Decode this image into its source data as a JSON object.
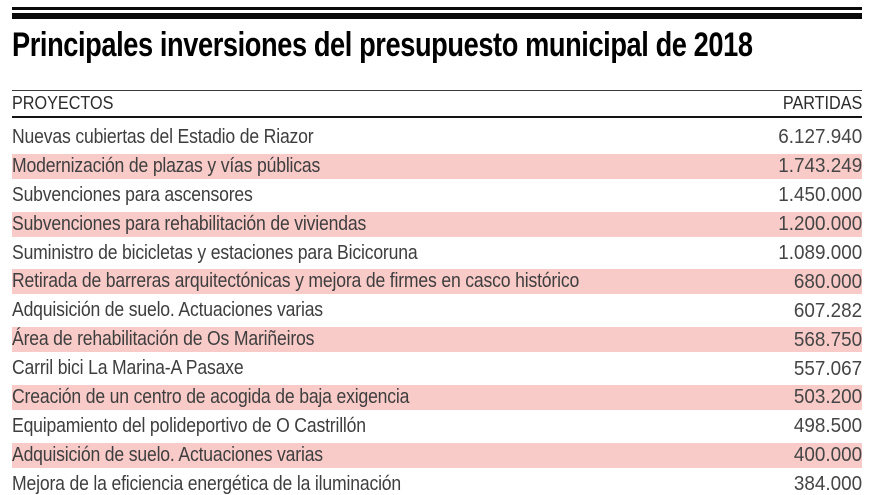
{
  "title": "Principales inversiones del presupuesto municipal de 2018",
  "table": {
    "columns": [
      "PROYECTOS",
      "PARTIDAS"
    ],
    "rows": [
      {
        "project": "Nuevas cubiertas del Estadio de Riazor",
        "amount": "6.127.940",
        "highlighted": false
      },
      {
        "project": "Modernización de plazas y vías públicas",
        "amount": "1.743.249",
        "highlighted": true
      },
      {
        "project": "Subvenciones para ascensores",
        "amount": "1.450.000",
        "highlighted": false
      },
      {
        "project": "Subvenciones para rehabilitación de viviendas",
        "amount": "1.200.000",
        "highlighted": true
      },
      {
        "project": "Suministro de bicicletas y estaciones para Bicicoruna",
        "amount": "1.089.000",
        "highlighted": false
      },
      {
        "project": "Retirada de barreras arquitectónicas y mejora de firmes en casco histórico",
        "amount": "680.000",
        "highlighted": true
      },
      {
        "project": "Adquisición de suelo. Actuaciones varias",
        "amount": "607.282",
        "highlighted": false
      },
      {
        "project": "Área de rehabilitación de Os Mariñeiros",
        "amount": "568.750",
        "highlighted": true
      },
      {
        "project": "Carril bici La Marina-A Pasaxe",
        "amount": "557.067",
        "highlighted": false
      },
      {
        "project": "Creación de un centro de acogida de baja exigencia",
        "amount": "503.200",
        "highlighted": true
      },
      {
        "project": "Equipamiento del polideportivo de O Castrillón",
        "amount": "498.500",
        "highlighted": false
      },
      {
        "project": "Adquisición de suelo. Actuaciones varias",
        "amount": "400.000",
        "highlighted": true
      },
      {
        "project": "Mejora de la eficiencia energética de la iluminación",
        "amount": "384.000",
        "highlighted": false
      }
    ]
  },
  "colors": {
    "highlight_row": "#f8cbc8",
    "body_text": "#3e3e3e",
    "title_text": "#000000",
    "rule": "#0a0a0a"
  },
  "chart_data": {
    "type": "table",
    "title": "Principales inversiones del presupuesto municipal de 2018",
    "columns": [
      "PROYECTOS",
      "PARTIDAS"
    ],
    "rows": [
      [
        "Nuevas cubiertas del Estadio de Riazor",
        6127940
      ],
      [
        "Modernización de plazas y vías públicas",
        1743249
      ],
      [
        "Subvenciones para ascensores",
        1450000
      ],
      [
        "Subvenciones para rehabilitación de viviendas",
        1200000
      ],
      [
        "Suministro de bicicletas y estaciones para Bicicoruna",
        1089000
      ],
      [
        "Retirada de barreras arquitectónicas y mejora de firmes en casco histórico",
        680000
      ],
      [
        "Adquisición de suelo. Actuaciones varias",
        607282
      ],
      [
        "Área de rehabilitación de Os Mariñeiros",
        568750
      ],
      [
        "Carril bici La Marina-A Pasaxe",
        557067
      ],
      [
        "Creación de un centro de acogida de baja exigencia",
        503200
      ],
      [
        "Equipamiento del polideportivo de O Castrillón",
        498500
      ],
      [
        "Adquisición de suelo. Actuaciones varias",
        400000
      ],
      [
        "Mejora de la eficiencia energética de la iluminación",
        384000
      ]
    ],
    "layout_hints": {
      "highlighted_row_indices": [
        1,
        3,
        5,
        7,
        9,
        11
      ],
      "amount_alignment": "right",
      "last_row_clipped": true
    }
  }
}
